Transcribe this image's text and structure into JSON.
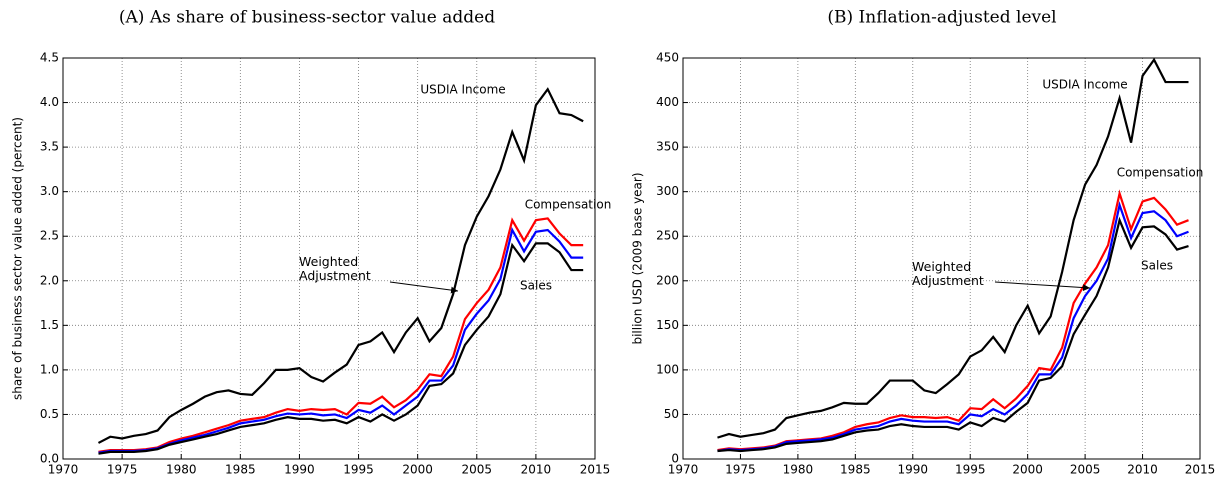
{
  "chart_data": [
    {
      "type": "line",
      "title": "(A) As share of business-sector value added",
      "y_label": "share of business sector value added (percent)",
      "x": [
        1973,
        1974,
        1975,
        1976,
        1977,
        1978,
        1979,
        1980,
        1981,
        1982,
        1983,
        1984,
        1985,
        1986,
        1987,
        1988,
        1989,
        1990,
        1991,
        1992,
        1993,
        1994,
        1995,
        1996,
        1997,
        1998,
        1999,
        2000,
        2001,
        2002,
        2003,
        2004,
        2005,
        2006,
        2007,
        2008,
        2009,
        2010,
        2011,
        2012,
        2013,
        2014
      ],
      "xlim": [
        1970,
        2015
      ],
      "xticks": [
        1970,
        1975,
        1980,
        1985,
        1990,
        1995,
        2000,
        2005,
        2010,
        2015
      ],
      "ylim": [
        0,
        4.5
      ],
      "yticks": [
        {
          "value": 0,
          "label": "0.0"
        },
        0.5,
        {
          "value": 1,
          "label": "1.0"
        },
        1.5,
        {
          "value": 2,
          "label": "2.0"
        },
        2.5,
        {
          "value": 3,
          "label": "3.0"
        },
        3.5,
        {
          "value": 4,
          "label": "4.0"
        },
        4.5
      ],
      "grid": true,
      "series": [
        {
          "name": "USDIA Income",
          "color": "#000000",
          "values": [
            0.18,
            0.25,
            0.23,
            0.26,
            0.28,
            0.32,
            0.47,
            0.55,
            0.62,
            0.7,
            0.75,
            0.77,
            0.73,
            0.72,
            0.85,
            1.0,
            1.0,
            1.02,
            0.92,
            0.87,
            0.97,
            1.06,
            1.28,
            1.32,
            1.42,
            1.2,
            1.42,
            1.58,
            1.32,
            1.47,
            1.85,
            2.4,
            2.72,
            2.95,
            3.25,
            3.67,
            3.35,
            3.97,
            4.15,
            3.88,
            3.86,
            3.79
          ]
        },
        {
          "name": "Compensation",
          "color": "#ff0000",
          "values": [
            0.08,
            0.1,
            0.1,
            0.1,
            0.11,
            0.13,
            0.19,
            0.23,
            0.26,
            0.3,
            0.34,
            0.38,
            0.43,
            0.45,
            0.47,
            0.52,
            0.56,
            0.54,
            0.56,
            0.55,
            0.56,
            0.5,
            0.63,
            0.62,
            0.7,
            0.58,
            0.66,
            0.78,
            0.95,
            0.93,
            1.15,
            1.57,
            1.75,
            1.9,
            2.15,
            2.68,
            2.45,
            2.68,
            2.7,
            2.53,
            2.4,
            2.4
          ]
        },
        {
          "name": "Weighted Adjustment",
          "color": "#0000ff",
          "values": [
            0.07,
            0.09,
            0.09,
            0.09,
            0.1,
            0.12,
            0.17,
            0.21,
            0.24,
            0.27,
            0.31,
            0.35,
            0.4,
            0.42,
            0.44,
            0.48,
            0.51,
            0.5,
            0.51,
            0.49,
            0.5,
            0.46,
            0.55,
            0.52,
            0.6,
            0.5,
            0.6,
            0.7,
            0.88,
            0.88,
            1.05,
            1.45,
            1.63,
            1.78,
            2.02,
            2.57,
            2.33,
            2.55,
            2.57,
            2.44,
            2.26,
            2.26
          ]
        },
        {
          "name": "Sales",
          "color": "#000000",
          "values": [
            0.06,
            0.08,
            0.08,
            0.08,
            0.09,
            0.11,
            0.16,
            0.19,
            0.22,
            0.25,
            0.28,
            0.32,
            0.36,
            0.38,
            0.4,
            0.44,
            0.47,
            0.45,
            0.45,
            0.43,
            0.44,
            0.4,
            0.47,
            0.42,
            0.5,
            0.43,
            0.5,
            0.6,
            0.82,
            0.84,
            0.96,
            1.28,
            1.45,
            1.6,
            1.85,
            2.4,
            2.22,
            2.42,
            2.42,
            2.32,
            2.12,
            2.12
          ]
        }
      ]
    },
    {
      "type": "line",
      "title": "(B) Inflation-adjusted level",
      "y_label": "billion USD (2009 base year)",
      "x": [
        1973,
        1974,
        1975,
        1976,
        1977,
        1978,
        1979,
        1980,
        1981,
        1982,
        1983,
        1984,
        1985,
        1986,
        1987,
        1988,
        1989,
        1990,
        1991,
        1992,
        1993,
        1994,
        1995,
        1996,
        1997,
        1998,
        1999,
        2000,
        2001,
        2002,
        2003,
        2004,
        2005,
        2006,
        2007,
        2008,
        2009,
        2010,
        2011,
        2012,
        2013,
        2014
      ],
      "xlim": [
        1970,
        2015
      ],
      "xticks": [
        1970,
        1975,
        1980,
        1985,
        1990,
        1995,
        2000,
        2005,
        2010,
        2015
      ],
      "ylim": [
        0,
        450
      ],
      "yticks": [
        0,
        50,
        100,
        150,
        200,
        250,
        300,
        350,
        400,
        450
      ],
      "grid": true,
      "series": [
        {
          "name": "USDIA Income",
          "color": "#000000",
          "values": [
            24,
            28,
            25,
            27,
            29,
            33,
            46,
            49,
            52,
            54,
            58,
            63,
            62,
            62,
            74,
            88,
            88,
            88,
            77,
            74,
            84,
            95,
            115,
            122,
            137,
            120,
            150,
            172,
            141,
            160,
            210,
            268,
            308,
            330,
            362,
            405,
            355,
            430,
            448,
            423,
            423,
            423
          ]
        },
        {
          "name": "Compensation",
          "color": "#ff0000",
          "values": [
            10,
            12,
            11,
            12,
            13,
            15,
            20,
            21,
            22,
            23,
            26,
            30,
            36,
            39,
            41,
            46,
            49,
            47,
            47,
            46,
            47,
            43,
            57,
            56,
            67,
            57,
            68,
            82,
            102,
            100,
            125,
            175,
            197,
            215,
            240,
            298,
            258,
            289,
            293,
            280,
            263,
            268
          ]
        },
        {
          "name": "Weighted Adjustment",
          "color": "#0000ff",
          "values": [
            9,
            11,
            10,
            11,
            12,
            14,
            19,
            20,
            21,
            22,
            24,
            28,
            33,
            35,
            37,
            42,
            45,
            43,
            42,
            42,
            42,
            39,
            50,
            48,
            56,
            50,
            60,
            73,
            95,
            95,
            114,
            158,
            183,
            200,
            225,
            285,
            248,
            276,
            278,
            268,
            250,
            255
          ]
        },
        {
          "name": "Sales",
          "color": "#000000",
          "values": [
            9,
            10,
            9,
            10,
            11,
            13,
            17,
            18,
            19,
            20,
            22,
            26,
            30,
            32,
            33,
            37,
            39,
            37,
            36,
            36,
            36,
            33,
            41,
            37,
            46,
            42,
            53,
            63,
            88,
            91,
            104,
            140,
            162,
            183,
            215,
            268,
            237,
            260,
            261,
            252,
            235,
            239
          ]
        }
      ]
    }
  ]
}
